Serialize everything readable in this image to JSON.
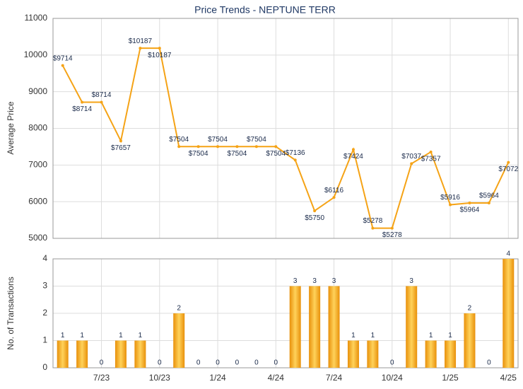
{
  "chart_data": [
    {
      "type": "line",
      "title": "Price Trends - NEPTUNE TERR",
      "y_label": "Average Price",
      "values": [
        9714,
        8714,
        8714,
        7657,
        10187,
        10187,
        7504,
        7504,
        7504,
        7504,
        7504,
        7504,
        7136,
        5750,
        6116,
        7424,
        5278,
        5278,
        7037,
        7357,
        5916,
        5964,
        5964,
        7072
      ],
      "value_labels": [
        "$9714",
        "$8714",
        "$8714",
        "$7657",
        "$10187",
        "$10187",
        "$7504",
        "$7504",
        "$7504",
        "$7504",
        "$7504",
        "$7504",
        "$7136",
        "$5750",
        "$6116",
        "$7424",
        "$5278",
        "$5278",
        "$7037",
        "$7357",
        "$5916",
        "$5964",
        "$5964",
        "$7072"
      ],
      "color": "#f5a316",
      "ylim": [
        5000,
        11000
      ],
      "yticks": [
        5000,
        6000,
        7000,
        8000,
        9000,
        10000,
        11000
      ],
      "grid": true
    },
    {
      "type": "bar",
      "y_label": "No. of Transactions",
      "categories": [
        null,
        null,
        "7/23",
        null,
        null,
        "10/23",
        null,
        null,
        "1/24",
        null,
        null,
        "4/24",
        null,
        null,
        "7/24",
        null,
        null,
        "10/24",
        null,
        null,
        "1/25",
        null,
        null,
        "4/25"
      ],
      "values": [
        1,
        1,
        0,
        1,
        1,
        0,
        2,
        0,
        0,
        0,
        0,
        0,
        3,
        3,
        3,
        1,
        1,
        0,
        3,
        1,
        1,
        2,
        0,
        4
      ],
      "color": "#f5a316",
      "ylim": [
        0,
        4
      ],
      "yticks": [
        0,
        1,
        2,
        3,
        4
      ],
      "grid": true
    }
  ]
}
